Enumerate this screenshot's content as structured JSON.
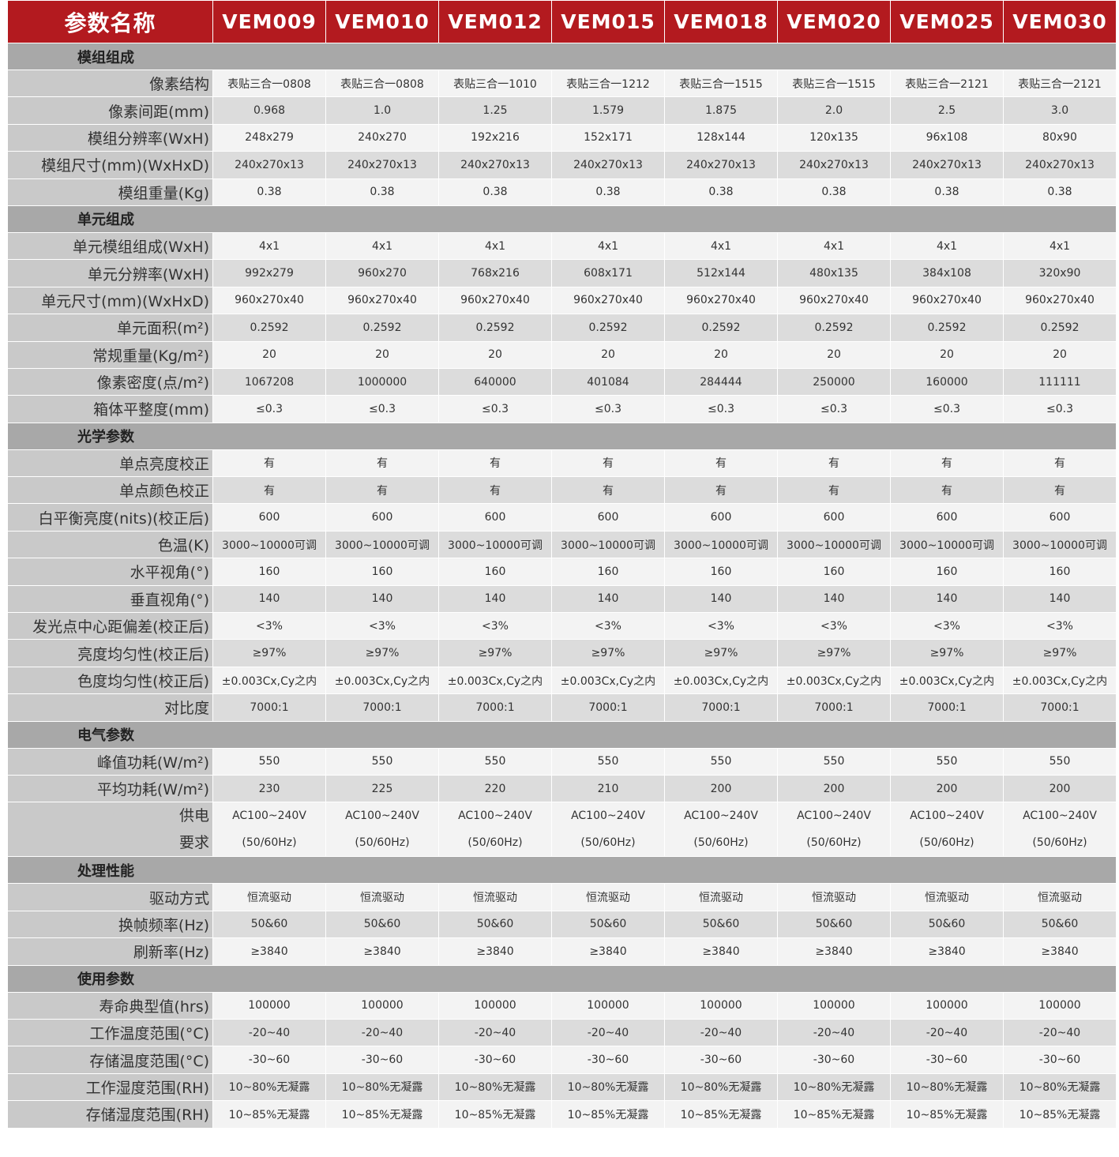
{
  "header": {
    "label": "参数名称",
    "models": [
      "VEM009",
      "VEM010",
      "VEM012",
      "VEM015",
      "VEM018",
      "VEM020",
      "VEM025",
      "VEM030"
    ]
  },
  "colors": {
    "header_bg": "#b31a1f",
    "section_bg": "#a8a8a8",
    "label_bg": "#c9c9c9"
  },
  "sections": [
    {
      "title": "模组组成",
      "rows": [
        {
          "label": "像素结构",
          "values": [
            "表贴三合一0808",
            "表贴三合一0808",
            "表贴三合一1010",
            "表贴三合一1212",
            "表贴三合一1515",
            "表贴三合一1515",
            "表贴三合一2121",
            "表贴三合一2121"
          ]
        },
        {
          "label": "像素间距(mm)",
          "values": [
            "0.968",
            "1.0",
            "1.25",
            "1.579",
            "1.875",
            "2.0",
            "2.5",
            "3.0"
          ]
        },
        {
          "label": "模组分辨率(WxH)",
          "values": [
            "248x279",
            "240x270",
            "192x216",
            "152x171",
            "128x144",
            "120x135",
            "96x108",
            "80x90"
          ]
        },
        {
          "label": "模组尺寸(mm)(WxHxD)",
          "values": [
            "240x270x13",
            "240x270x13",
            "240x270x13",
            "240x270x13",
            "240x270x13",
            "240x270x13",
            "240x270x13",
            "240x270x13"
          ]
        },
        {
          "label": "模组重量(Kg)",
          "values": [
            "0.38",
            "0.38",
            "0.38",
            "0.38",
            "0.38",
            "0.38",
            "0.38",
            "0.38"
          ]
        }
      ]
    },
    {
      "title": "单元组成",
      "rows": [
        {
          "label": "单元模组组成(WxH)",
          "values": [
            "4x1",
            "4x1",
            "4x1",
            "4x1",
            "4x1",
            "4x1",
            "4x1",
            "4x1"
          ]
        },
        {
          "label": "单元分辨率(WxH)",
          "values": [
            "992x279",
            "960x270",
            "768x216",
            "608x171",
            "512x144",
            "480x135",
            "384x108",
            "320x90"
          ]
        },
        {
          "label": "单元尺寸(mm)(WxHxD)",
          "values": [
            "960x270x40",
            "960x270x40",
            "960x270x40",
            "960x270x40",
            "960x270x40",
            "960x270x40",
            "960x270x40",
            "960x270x40"
          ]
        },
        {
          "label": "单元面积(m²)",
          "values": [
            "0.2592",
            "0.2592",
            "0.2592",
            "0.2592",
            "0.2592",
            "0.2592",
            "0.2592",
            "0.2592"
          ]
        },
        {
          "label": "常规重量(Kg/m²)",
          "values": [
            "20",
            "20",
            "20",
            "20",
            "20",
            "20",
            "20",
            "20"
          ]
        },
        {
          "label": "像素密度(点/m²)",
          "values": [
            "1067208",
            "1000000",
            "640000",
            "401084",
            "284444",
            "250000",
            "160000",
            "111111"
          ]
        },
        {
          "label": "箱体平整度(mm)",
          "values": [
            "≤0.3",
            "≤0.3",
            "≤0.3",
            "≤0.3",
            "≤0.3",
            "≤0.3",
            "≤0.3",
            "≤0.3"
          ]
        }
      ]
    },
    {
      "title": "光学参数",
      "rows": [
        {
          "label": "单点亮度校正",
          "values": [
            "有",
            "有",
            "有",
            "有",
            "有",
            "有",
            "有",
            "有"
          ]
        },
        {
          "label": "单点颜色校正",
          "values": [
            "有",
            "有",
            "有",
            "有",
            "有",
            "有",
            "有",
            "有"
          ]
        },
        {
          "label": "白平衡亮度(nits)(校正后)",
          "values": [
            "600",
            "600",
            "600",
            "600",
            "600",
            "600",
            "600",
            "600"
          ]
        },
        {
          "label": "色温(K)",
          "values": [
            "3000~10000可调",
            "3000~10000可调",
            "3000~10000可调",
            "3000~10000可调",
            "3000~10000可调",
            "3000~10000可调",
            "3000~10000可调",
            "3000~10000可调"
          ]
        },
        {
          "label": "水平视角(°)",
          "values": [
            "160",
            "160",
            "160",
            "160",
            "160",
            "160",
            "160",
            "160"
          ]
        },
        {
          "label": "垂直视角(°)",
          "values": [
            "140",
            "140",
            "140",
            "140",
            "140",
            "140",
            "140",
            "140"
          ]
        },
        {
          "label": "发光点中心距偏差(校正后)",
          "values": [
            "<3%",
            "<3%",
            "<3%",
            "<3%",
            "<3%",
            "<3%",
            "<3%",
            "<3%"
          ]
        },
        {
          "label": "亮度均匀性(校正后)",
          "values": [
            "≥97%",
            "≥97%",
            "≥97%",
            "≥97%",
            "≥97%",
            "≥97%",
            "≥97%",
            "≥97%"
          ]
        },
        {
          "label": "色度均匀性(校正后)",
          "values": [
            "±0.003Cx,Cy之内",
            "±0.003Cx,Cy之内",
            "±0.003Cx,Cy之内",
            "±0.003Cx,Cy之内",
            "±0.003Cx,Cy之内",
            "±0.003Cx,Cy之内",
            "±0.003Cx,Cy之内",
            "±0.003Cx,Cy之内"
          ]
        },
        {
          "label": "对比度",
          "values": [
            "7000:1",
            "7000:1",
            "7000:1",
            "7000:1",
            "7000:1",
            "7000:1",
            "7000:1",
            "7000:1"
          ]
        }
      ]
    },
    {
      "title": "电气参数",
      "rows": [
        {
          "label": "峰值功耗(W/m²)",
          "values": [
            "550",
            "550",
            "550",
            "550",
            "550",
            "550",
            "550",
            "550"
          ]
        },
        {
          "label": "平均功耗(W/m²)",
          "values": [
            "230",
            "225",
            "220",
            "210",
            "200",
            "200",
            "200",
            "200"
          ]
        },
        {
          "label": [
            "供电",
            "要求"
          ],
          "values": [
            [
              "AC100~240V",
              "(50/60Hz)"
            ],
            [
              "AC100~240V",
              "(50/60Hz)"
            ],
            [
              "AC100~240V",
              "(50/60Hz)"
            ],
            [
              "AC100~240V",
              "(50/60Hz)"
            ],
            [
              "AC100~240V",
              "(50/60Hz)"
            ],
            [
              "AC100~240V",
              "(50/60Hz)"
            ],
            [
              "AC100~240V",
              "(50/60Hz)"
            ],
            [
              "AC100~240V",
              "(50/60Hz)"
            ]
          ]
        }
      ]
    },
    {
      "title": "处理性能",
      "rows": [
        {
          "label": "驱动方式",
          "values": [
            "恒流驱动",
            "恒流驱动",
            "恒流驱动",
            "恒流驱动",
            "恒流驱动",
            "恒流驱动",
            "恒流驱动",
            "恒流驱动"
          ]
        },
        {
          "label": "换帧频率(Hz)",
          "values": [
            "50&60",
            "50&60",
            "50&60",
            "50&60",
            "50&60",
            "50&60",
            "50&60",
            "50&60"
          ]
        },
        {
          "label": "刷新率(Hz)",
          "values": [
            "≥3840",
            "≥3840",
            "≥3840",
            "≥3840",
            "≥3840",
            "≥3840",
            "≥3840",
            "≥3840"
          ]
        }
      ]
    },
    {
      "title": "使用参数",
      "rows": [
        {
          "label": "寿命典型值(hrs)",
          "values": [
            "100000",
            "100000",
            "100000",
            "100000",
            "100000",
            "100000",
            "100000",
            "100000"
          ]
        },
        {
          "label": "工作温度范围(°C)",
          "values": [
            "-20~40",
            "-20~40",
            "-20~40",
            "-20~40",
            "-20~40",
            "-20~40",
            "-20~40",
            "-20~40"
          ]
        },
        {
          "label": "存储温度范围(°C)",
          "values": [
            "-30~60",
            "-30~60",
            "-30~60",
            "-30~60",
            "-30~60",
            "-30~60",
            "-30~60",
            "-30~60"
          ]
        },
        {
          "label": "工作湿度范围(RH)",
          "values": [
            "10~80%无凝露",
            "10~80%无凝露",
            "10~80%无凝露",
            "10~80%无凝露",
            "10~80%无凝露",
            "10~80%无凝露",
            "10~80%无凝露",
            "10~80%无凝露"
          ]
        },
        {
          "label": "存储湿度范围(RH)",
          "values": [
            "10~85%无凝露",
            "10~85%无凝露",
            "10~85%无凝露",
            "10~85%无凝露",
            "10~85%无凝露",
            "10~85%无凝露",
            "10~85%无凝露",
            "10~85%无凝露"
          ]
        }
      ]
    }
  ]
}
